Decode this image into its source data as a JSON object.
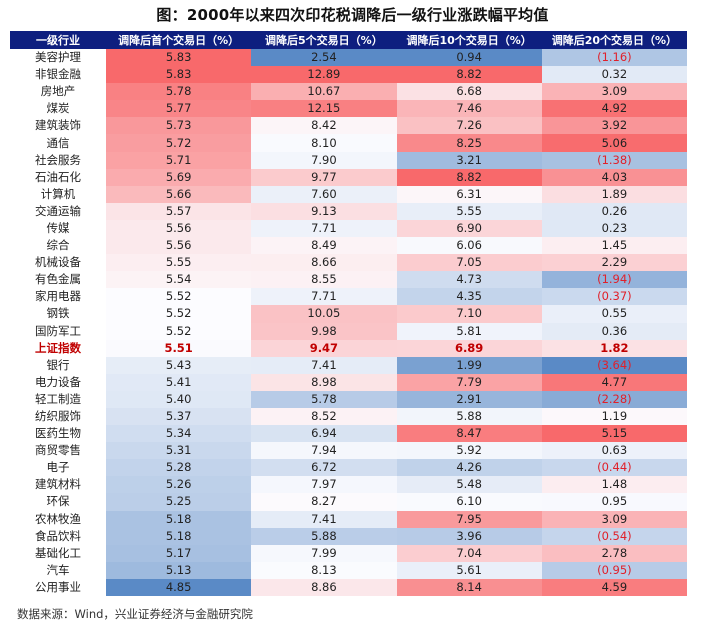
{
  "title": "图：2000年以来四次印花税调降后一级行业涨跌幅平均值",
  "source": "数据来源：Wind，兴业证券经济与金融研究院",
  "colors": {
    "header_bg": "#0e1f7f",
    "scale_min": "#5a8ac6",
    "scale_mid": "#fcfcff",
    "scale_max": "#f8696b",
    "negative_text": "#e0202a",
    "index_row_text": "#c00000"
  },
  "table": {
    "headers": [
      "一级行业",
      "调降后首个交易日（%）",
      "调降后5个交易日（%）",
      "调降后10个交易日（%）",
      "调降后20个交易日（%）"
    ],
    "rows": [
      {
        "industry": "美容护理",
        "d1": "5.83",
        "d5": "2.54",
        "d10": "0.94",
        "d20": "(1.16)"
      },
      {
        "industry": "非银金融",
        "d1": "5.83",
        "d5": "12.89",
        "d10": "8.82",
        "d20": "0.32"
      },
      {
        "industry": "房地产",
        "d1": "5.78",
        "d5": "10.67",
        "d10": "6.68",
        "d20": "3.09"
      },
      {
        "industry": "煤炭",
        "d1": "5.77",
        "d5": "12.15",
        "d10": "7.46",
        "d20": "4.92"
      },
      {
        "industry": "建筑装饰",
        "d1": "5.73",
        "d5": "8.42",
        "d10": "7.26",
        "d20": "3.92"
      },
      {
        "industry": "通信",
        "d1": "5.72",
        "d5": "8.10",
        "d10": "8.25",
        "d20": "5.06"
      },
      {
        "industry": "社会服务",
        "d1": "5.71",
        "d5": "7.90",
        "d10": "3.21",
        "d20": "(1.38)"
      },
      {
        "industry": "石油石化",
        "d1": "5.69",
        "d5": "9.77",
        "d10": "8.82",
        "d20": "4.03"
      },
      {
        "industry": "计算机",
        "d1": "5.66",
        "d5": "7.60",
        "d10": "6.31",
        "d20": "1.89"
      },
      {
        "industry": "交通运输",
        "d1": "5.57",
        "d5": "9.13",
        "d10": "5.55",
        "d20": "0.26"
      },
      {
        "industry": "传媒",
        "d1": "5.56",
        "d5": "7.71",
        "d10": "6.90",
        "d20": "0.23"
      },
      {
        "industry": "综合",
        "d1": "5.56",
        "d5": "8.49",
        "d10": "6.06",
        "d20": "1.45"
      },
      {
        "industry": "机械设备",
        "d1": "5.55",
        "d5": "8.66",
        "d10": "7.05",
        "d20": "2.29"
      },
      {
        "industry": "有色金属",
        "d1": "5.54",
        "d5": "8.55",
        "d10": "4.73",
        "d20": "(1.94)"
      },
      {
        "industry": "家用电器",
        "d1": "5.52",
        "d5": "7.71",
        "d10": "4.35",
        "d20": "(0.37)"
      },
      {
        "industry": "钢铁",
        "d1": "5.52",
        "d5": "10.05",
        "d10": "7.10",
        "d20": "0.55"
      },
      {
        "industry": "国防军工",
        "d1": "5.52",
        "d5": "9.98",
        "d10": "5.81",
        "d20": "0.36"
      },
      {
        "industry": "上证指数",
        "d1": "5.51",
        "d5": "9.47",
        "d10": "6.89",
        "d20": "1.82",
        "highlight": true
      },
      {
        "industry": "银行",
        "d1": "5.43",
        "d5": "7.41",
        "d10": "1.99",
        "d20": "(3.64)"
      },
      {
        "industry": "电力设备",
        "d1": "5.41",
        "d5": "8.98",
        "d10": "7.79",
        "d20": "4.77"
      },
      {
        "industry": "轻工制造",
        "d1": "5.40",
        "d5": "5.78",
        "d10": "2.91",
        "d20": "(2.28)"
      },
      {
        "industry": "纺织服饰",
        "d1": "5.37",
        "d5": "8.52",
        "d10": "5.88",
        "d20": "1.19"
      },
      {
        "industry": "医药生物",
        "d1": "5.34",
        "d5": "6.94",
        "d10": "8.47",
        "d20": "5.15"
      },
      {
        "industry": "商贸零售",
        "d1": "5.31",
        "d5": "7.94",
        "d10": "5.92",
        "d20": "0.63"
      },
      {
        "industry": "电子",
        "d1": "5.28",
        "d5": "6.72",
        "d10": "4.26",
        "d20": "(0.44)"
      },
      {
        "industry": "建筑材料",
        "d1": "5.26",
        "d5": "7.97",
        "d10": "5.48",
        "d20": "1.48"
      },
      {
        "industry": "环保",
        "d1": "5.25",
        "d5": "8.27",
        "d10": "6.10",
        "d20": "0.95"
      },
      {
        "industry": "农林牧渔",
        "d1": "5.18",
        "d5": "7.41",
        "d10": "7.95",
        "d20": "3.09"
      },
      {
        "industry": "食品饮料",
        "d1": "5.18",
        "d5": "5.88",
        "d10": "3.96",
        "d20": "(0.54)"
      },
      {
        "industry": "基础化工",
        "d1": "5.17",
        "d5": "7.99",
        "d10": "7.04",
        "d20": "2.78"
      },
      {
        "industry": "汽车",
        "d1": "5.13",
        "d5": "8.13",
        "d10": "5.61",
        "d20": "(0.95)"
      },
      {
        "industry": "公用事业",
        "d1": "4.85",
        "d5": "8.86",
        "d10": "8.14",
        "d20": "4.59"
      }
    ]
  },
  "chart_data": {
    "type": "table",
    "title": "图：2000年以来四次印花税调降后一级行业涨跌幅平均值",
    "columns": [
      "一级行业",
      "调降后首个交易日（%）",
      "调降后5个交易日（%）",
      "调降后10个交易日（%）",
      "调降后20个交易日（%）"
    ],
    "categories": [
      "美容护理",
      "非银金融",
      "房地产",
      "煤炭",
      "建筑装饰",
      "通信",
      "社会服务",
      "石油石化",
      "计算机",
      "交通运输",
      "传媒",
      "综合",
      "机械设备",
      "有色金属",
      "家用电器",
      "钢铁",
      "国防军工",
      "上证指数",
      "银行",
      "电力设备",
      "轻工制造",
      "纺织服饰",
      "医药生物",
      "商贸零售",
      "电子",
      "建筑材料",
      "环保",
      "农林牧渔",
      "食品饮料",
      "基础化工",
      "汽车",
      "公用事业"
    ],
    "series": [
      {
        "name": "调降后首个交易日（%）",
        "values": [
          5.83,
          5.83,
          5.78,
          5.77,
          5.73,
          5.72,
          5.71,
          5.69,
          5.66,
          5.57,
          5.56,
          5.56,
          5.55,
          5.54,
          5.52,
          5.52,
          5.52,
          5.51,
          5.43,
          5.41,
          5.4,
          5.37,
          5.34,
          5.31,
          5.28,
          5.26,
          5.25,
          5.18,
          5.18,
          5.17,
          5.13,
          4.85
        ]
      },
      {
        "name": "调降后5个交易日（%）",
        "values": [
          2.54,
          12.89,
          10.67,
          12.15,
          8.42,
          8.1,
          7.9,
          9.77,
          7.6,
          9.13,
          7.71,
          8.49,
          8.66,
          8.55,
          7.71,
          10.05,
          9.98,
          9.47,
          7.41,
          8.98,
          5.78,
          8.52,
          6.94,
          7.94,
          6.72,
          7.97,
          8.27,
          7.41,
          5.88,
          7.99,
          8.13,
          8.86
        ]
      },
      {
        "name": "调降后10个交易日（%）",
        "values": [
          0.94,
          8.82,
          6.68,
          7.46,
          7.26,
          8.25,
          3.21,
          8.82,
          6.31,
          5.55,
          6.9,
          6.06,
          7.05,
          4.73,
          4.35,
          7.1,
          5.81,
          6.89,
          1.99,
          7.79,
          2.91,
          5.88,
          8.47,
          5.92,
          4.26,
          5.48,
          6.1,
          7.95,
          3.96,
          7.04,
          5.61,
          8.14
        ]
      },
      {
        "name": "调降后20个交易日（%）",
        "values": [
          -1.16,
          0.32,
          3.09,
          4.92,
          3.92,
          5.06,
          -1.38,
          4.03,
          1.89,
          0.26,
          0.23,
          1.45,
          2.29,
          -1.94,
          -0.37,
          0.55,
          0.36,
          1.82,
          -3.64,
          4.77,
          -2.28,
          1.19,
          5.15,
          0.63,
          -0.44,
          1.48,
          0.95,
          3.09,
          -0.54,
          2.78,
          -0.95,
          4.59
        ]
      }
    ],
    "highlight_row": "上证指数",
    "color_scale": {
      "min": "#5a8ac6",
      "mid": "#fcfcff",
      "max": "#f8696b"
    },
    "note": "数据来源：Wind，兴业证券经济与金融研究院"
  }
}
